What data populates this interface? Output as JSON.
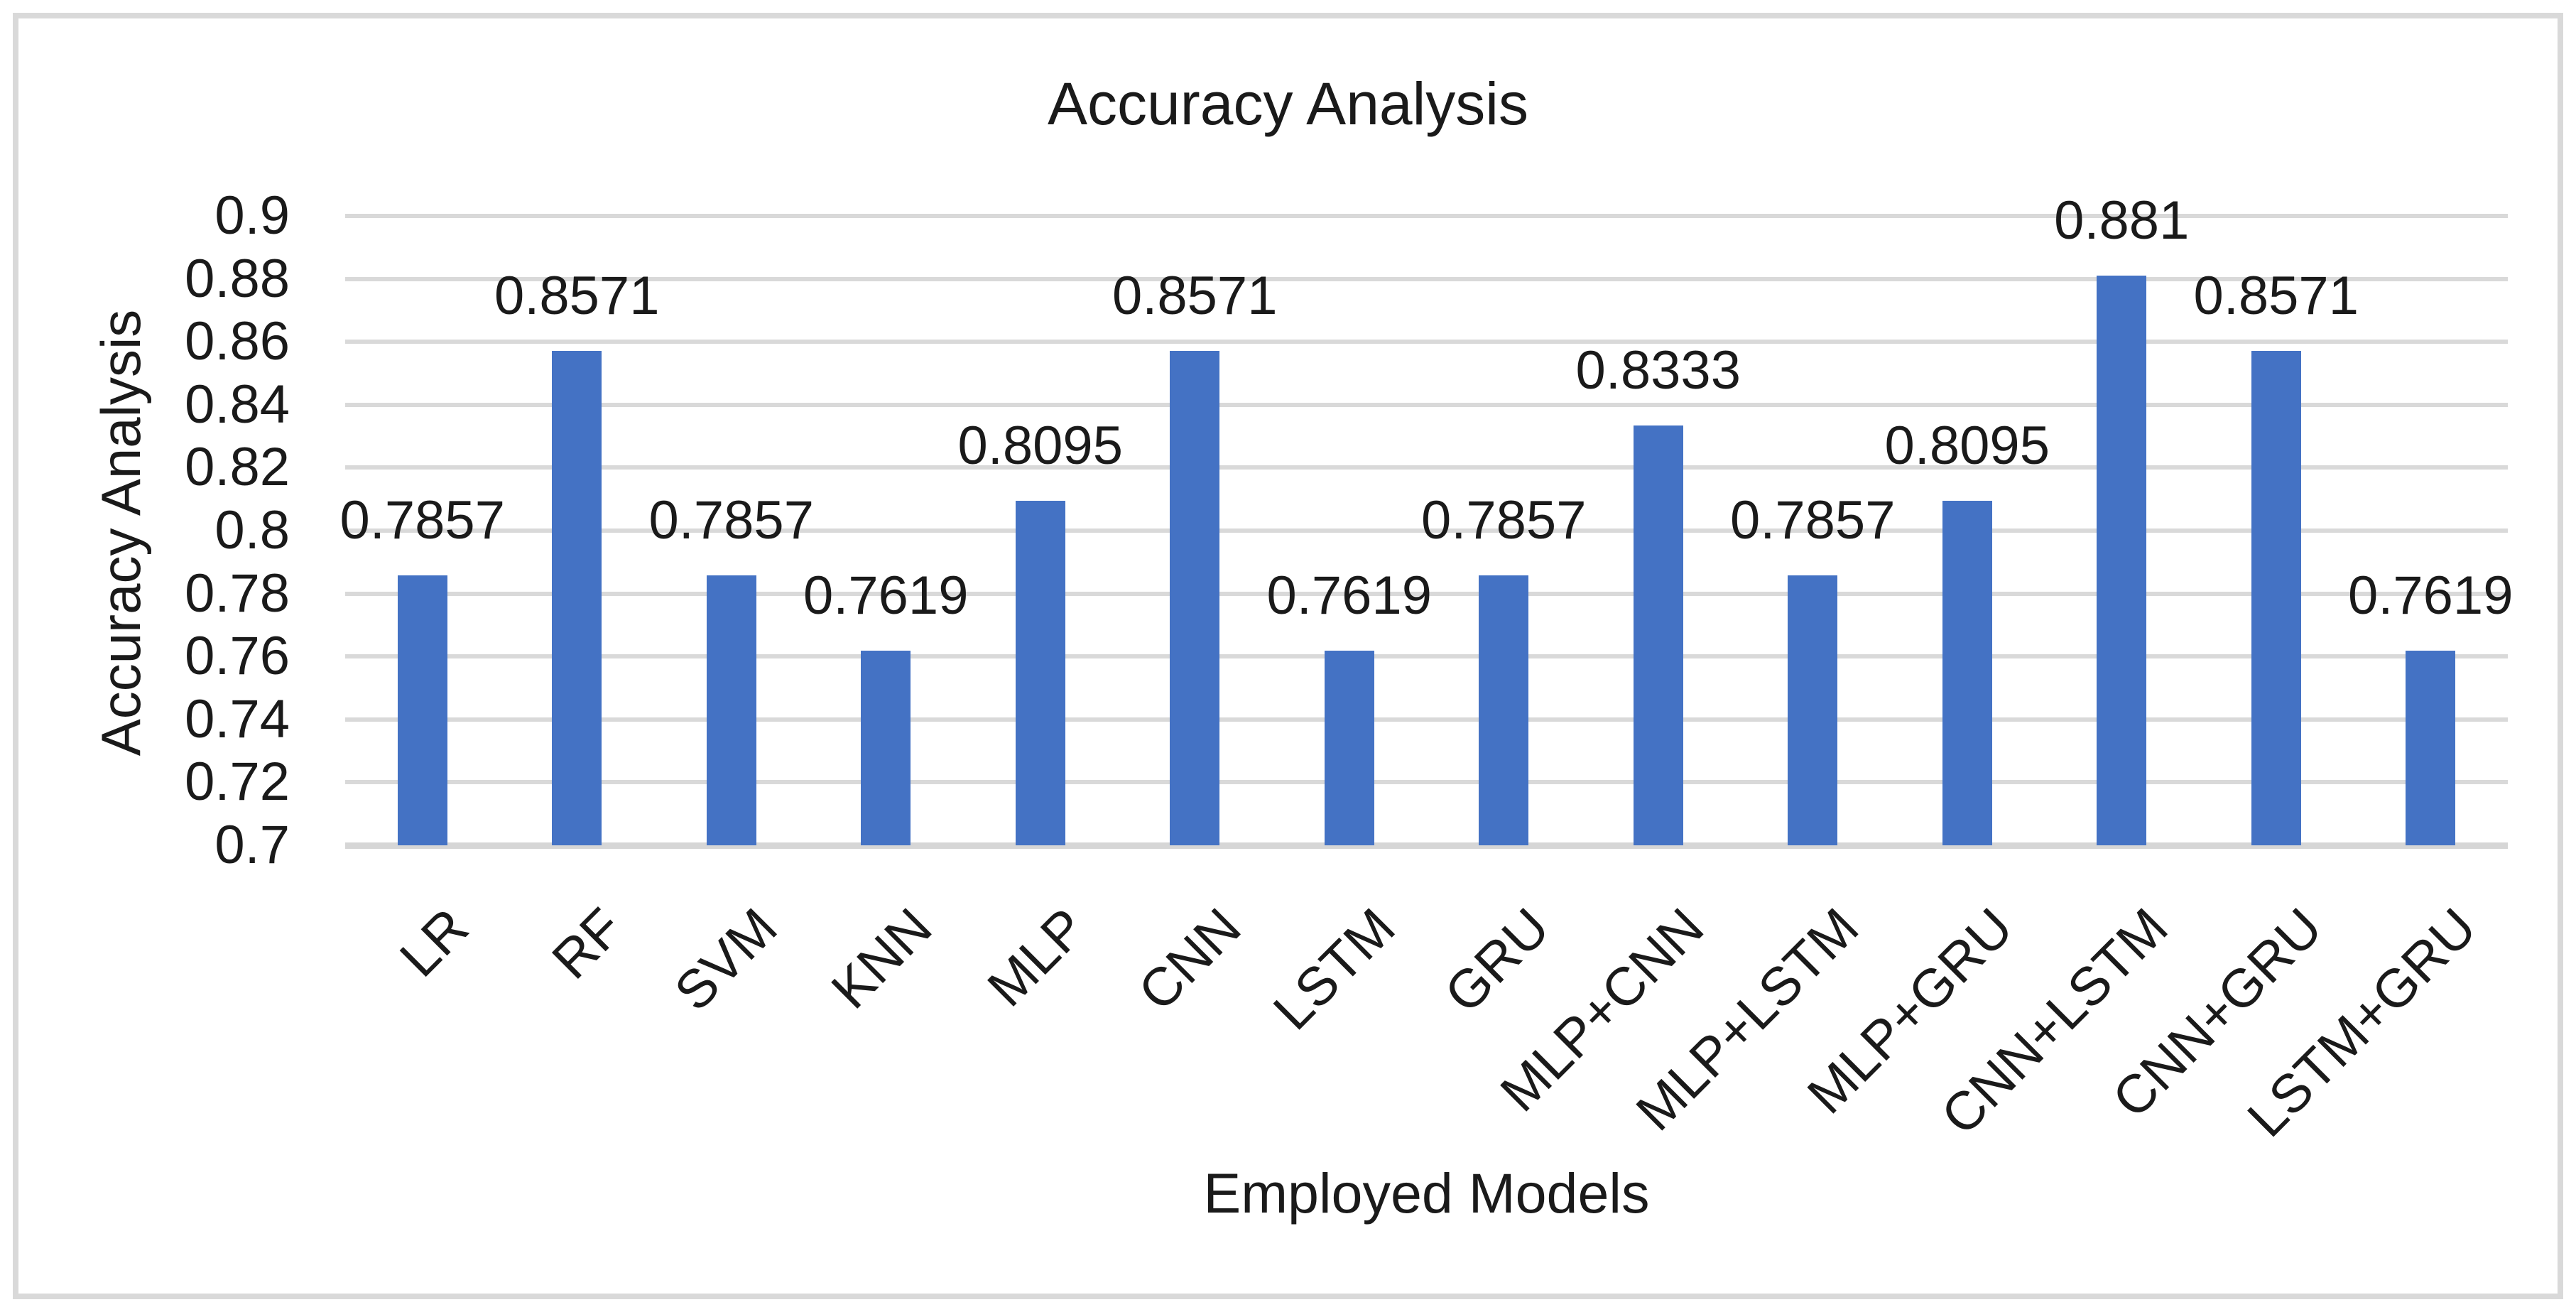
{
  "chart_data": {
    "type": "bar",
    "title": "Accuracy Analysis",
    "xlabel": "Employed Models",
    "ylabel": "Accuracy Analysis",
    "categories": [
      "LR",
      "RF",
      "SVM",
      "KNN",
      "MLP",
      "CNN",
      "LSTM",
      "GRU",
      "MLP+CNN",
      "MLP+LSTM",
      "MLP+GRU",
      "CNN+LSTM",
      "CNN+GRU",
      "LSTM+GRU"
    ],
    "values": [
      0.7857,
      0.8571,
      0.7857,
      0.7619,
      0.8095,
      0.8571,
      0.7619,
      0.7857,
      0.8333,
      0.7857,
      0.8095,
      0.881,
      0.8571,
      0.7619
    ],
    "value_labels": [
      "0.7857",
      "0.8571",
      "0.7857",
      "0.7619",
      "0.8095",
      "0.8571",
      "0.7619",
      "0.7857",
      "0.8333",
      "0.7857",
      "0.8095",
      "0.881",
      "0.8571",
      "0.7619"
    ],
    "ylim": [
      0.7,
      0.9
    ],
    "yticks": [
      "0.9",
      "0.88",
      "0.86",
      "0.84",
      "0.82",
      "0.8",
      "0.78",
      "0.76",
      "0.74",
      "0.72",
      "0.7"
    ],
    "grid": true,
    "legend_position": "none",
    "bar_color": "#4472C4",
    "gridline_color": "#D9D9D9",
    "axis_line_color": "#D6D6D6",
    "border_color": "#D9D9D9",
    "text_color": "#1A1A1A"
  }
}
